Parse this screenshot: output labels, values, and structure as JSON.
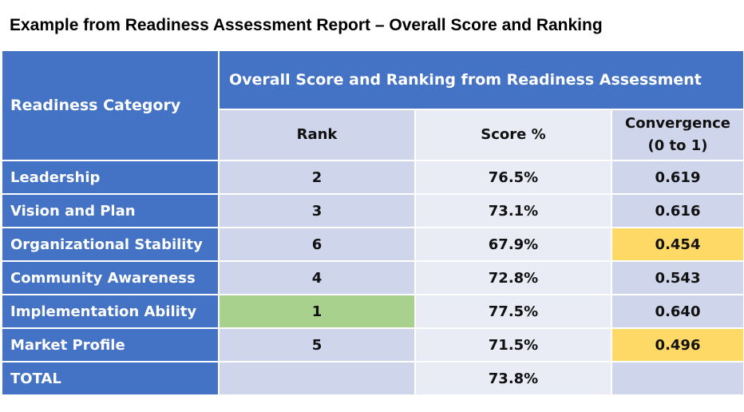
{
  "title": "Example from Readiness Assessment Report – Overall Score and Ranking",
  "table": {
    "category_header": "Readiness Category",
    "group_header": "Overall Score and Ranking from Readiness Assessment",
    "columns": {
      "rank": "Rank",
      "score": "Score %",
      "convergence_line1": "Convergence",
      "convergence_line2": "(0 to 1)"
    },
    "rows": [
      {
        "category": "Leadership",
        "rank": "2",
        "score": "76.5%",
        "convergence": "0.619"
      },
      {
        "category": "Vision and Plan",
        "rank": "3",
        "score": "73.1%",
        "convergence": "0.616"
      },
      {
        "category": "Organizational Stability",
        "rank": "6",
        "score": "67.9%",
        "convergence": "0.454"
      },
      {
        "category": "Community Awareness",
        "rank": "4",
        "score": "72.8%",
        "convergence": "0.543"
      },
      {
        "category": "Implementation Ability",
        "rank": "1",
        "score": "77.5%",
        "convergence": "0.640"
      },
      {
        "category": "Market Profile",
        "rank": "5",
        "score": "71.5%",
        "convergence": "0.496"
      }
    ],
    "total": {
      "category": "TOTAL",
      "rank": "",
      "score": "73.8%",
      "convergence": ""
    },
    "highlight_colors": {
      "header_blue": "#4472c4",
      "highest_rank_green": "#a9d18e",
      "low_convergence_yellow": "#ffd966",
      "band_dark": "#cfd5ea",
      "band_light": "#e9ebf5"
    }
  }
}
